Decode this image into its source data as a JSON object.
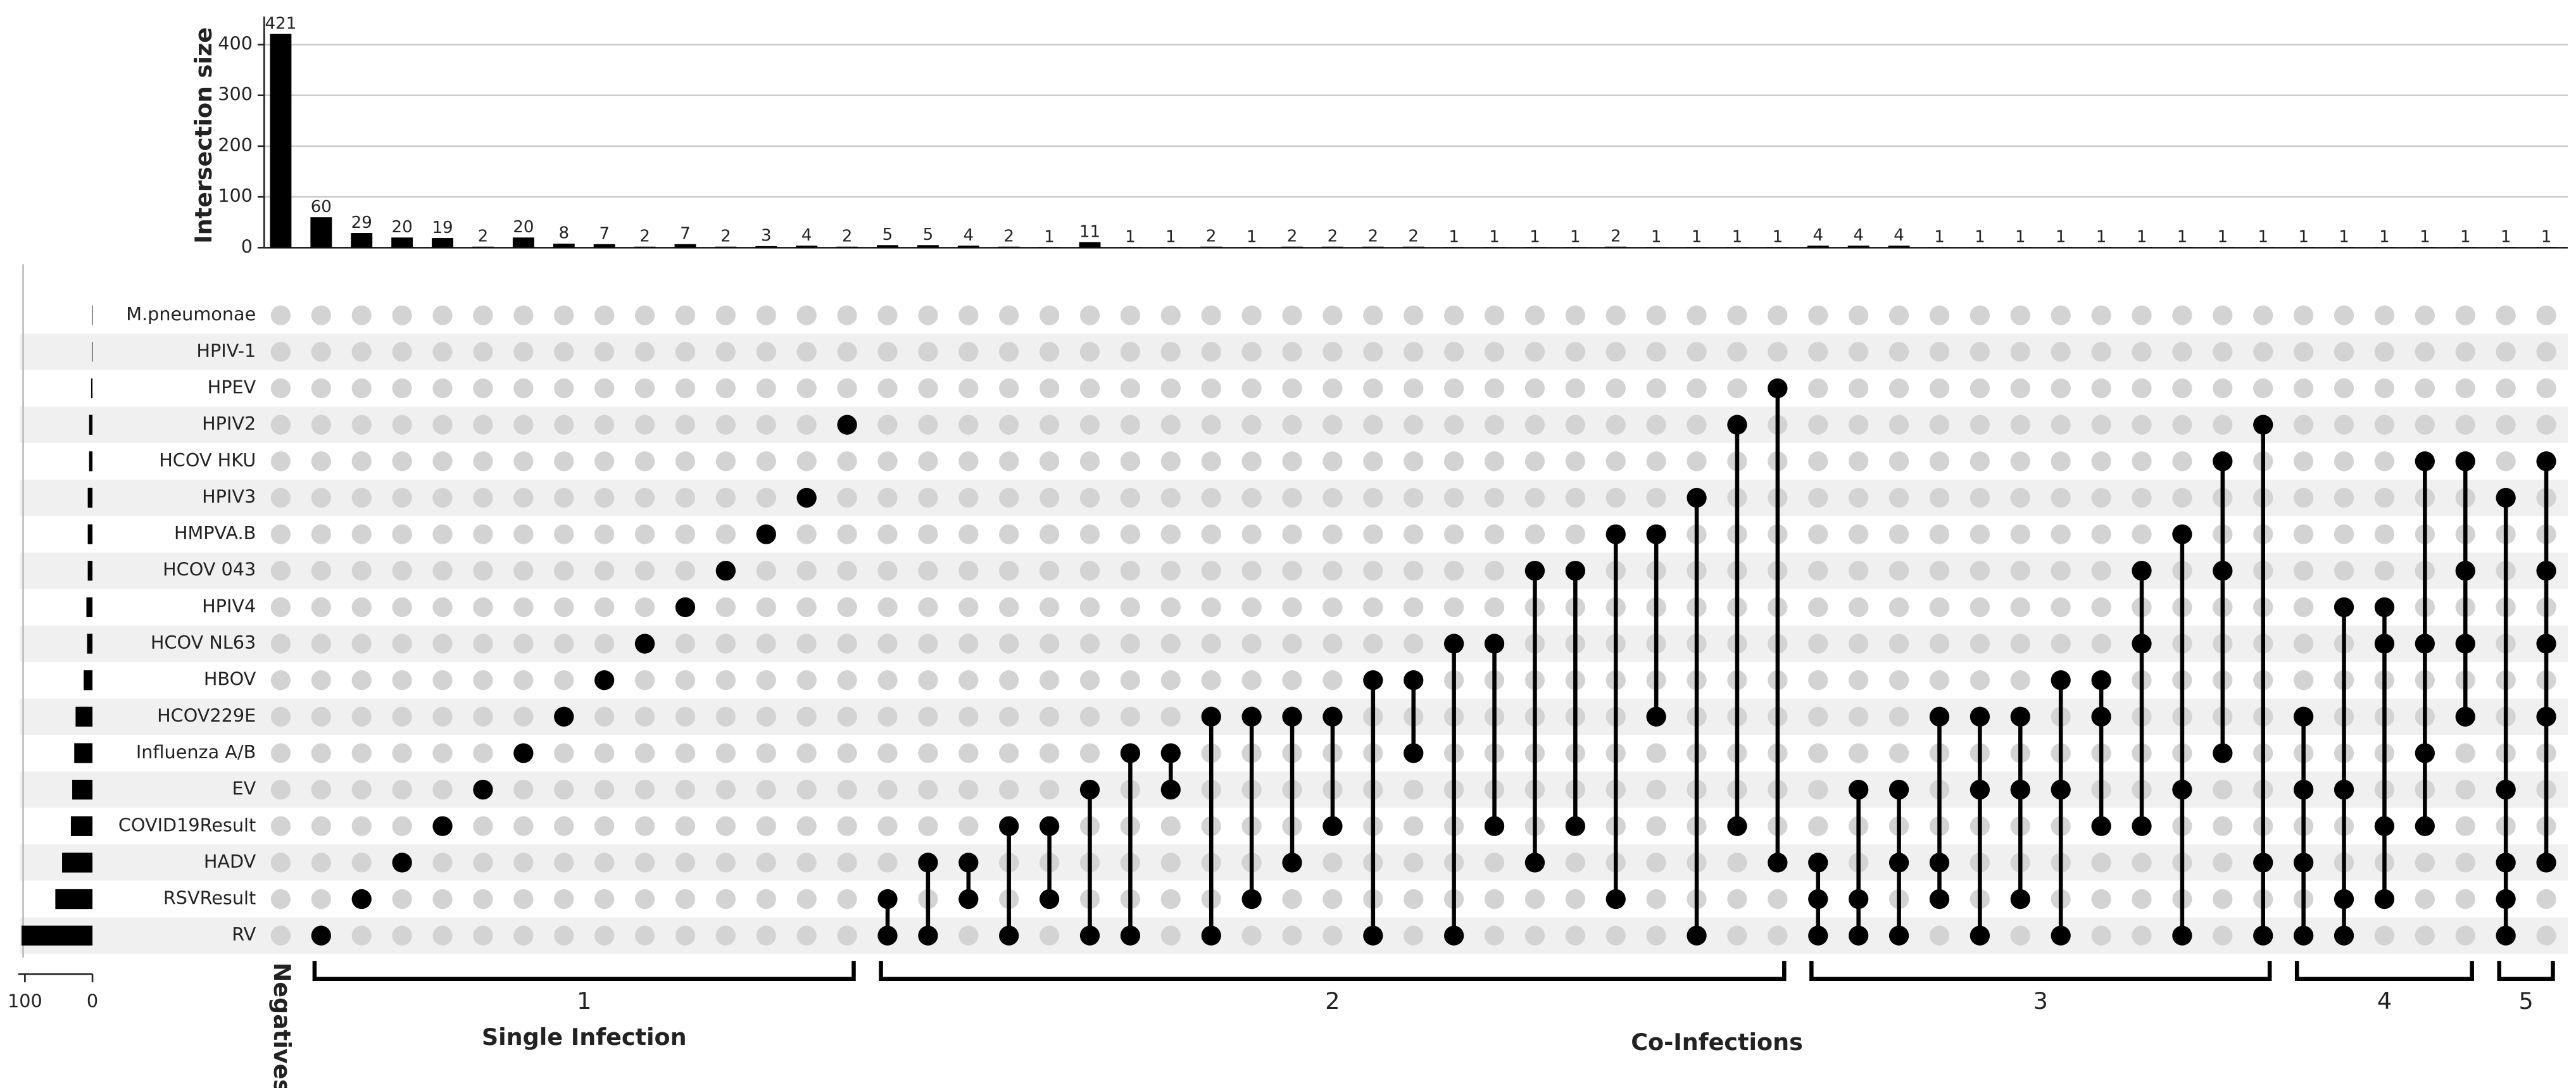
{
  "chart_data": {
    "type": "upset",
    "ylabel": "Intersection size",
    "ylim": [
      0,
      440
    ],
    "yticks": [
      0,
      100,
      200,
      300,
      400
    ],
    "grid": true,
    "dot_color": "#000000",
    "empty_dot_color": "#d3d3d3",
    "sets": [
      "M.pneumonae",
      "HPIV-1",
      "HPEV",
      "HPIV2",
      "HCOV HKU",
      "HPIV3",
      "HMPVA.B",
      "HCOV 043",
      "HPIV4",
      "HCOV NL63",
      "HBOV",
      "HCOV229E",
      "Influenza A/B",
      "EV",
      "COVID19Result",
      "HADV",
      "RSVResult",
      "RV"
    ],
    "set_sizes": [
      1,
      1,
      2,
      5,
      5,
      7,
      7,
      7,
      9,
      8,
      13,
      25,
      27,
      30,
      32,
      45,
      55,
      105
    ],
    "set_size_xlim": [
      0,
      110
    ],
    "set_size_xticks": [
      100,
      0
    ],
    "intersections": {
      "values": [
        421,
        60,
        29,
        20,
        19,
        2,
        20,
        8,
        7,
        2,
        7,
        2,
        3,
        4,
        2,
        5,
        5,
        4,
        2,
        1,
        11,
        1,
        1,
        2,
        1,
        2,
        2,
        2,
        2,
        1,
        1,
        1,
        1,
        2,
        1,
        1,
        1,
        1,
        4,
        4,
        4,
        1,
        1,
        1,
        1,
        1,
        1,
        1,
        1,
        1,
        1,
        1,
        1,
        1,
        1,
        1,
        1
      ],
      "members": [
        [],
        [
          17
        ],
        [
          16
        ],
        [
          15
        ],
        [
          14
        ],
        [
          13
        ],
        [
          12
        ],
        [
          11
        ],
        [
          10
        ],
        [
          9
        ],
        [
          8
        ],
        [
          7
        ],
        [
          6
        ],
        [
          5
        ],
        [
          3
        ],
        [
          16,
          17
        ],
        [
          15,
          17
        ],
        [
          15,
          16
        ],
        [
          14,
          17
        ],
        [
          14,
          16
        ],
        [
          13,
          17
        ],
        [
          12,
          17
        ],
        [
          12,
          13
        ],
        [
          11,
          17
        ],
        [
          11,
          16
        ],
        [
          11,
          15
        ],
        [
          11,
          14
        ],
        [
          10,
          17
        ],
        [
          10,
          12
        ],
        [
          9,
          17
        ],
        [
          9,
          14
        ],
        [
          7,
          15
        ],
        [
          7,
          14
        ],
        [
          6,
          16
        ],
        [
          6,
          11
        ],
        [
          5,
          17
        ],
        [
          3,
          14
        ],
        [
          2,
          15
        ],
        [
          15,
          16,
          17
        ],
        [
          13,
          16,
          17
        ],
        [
          13,
          15,
          17
        ],
        [
          11,
          15,
          16
        ],
        [
          11,
          13,
          17
        ],
        [
          11,
          13,
          16
        ],
        [
          10,
          13,
          17
        ],
        [
          10,
          11,
          14
        ],
        [
          7,
          9,
          14
        ],
        [
          6,
          13,
          17
        ],
        [
          4,
          7,
          12
        ],
        [
          3,
          15,
          17
        ],
        [
          11,
          13,
          15,
          17
        ],
        [
          8,
          13,
          16,
          17
        ],
        [
          8,
          9,
          14,
          16
        ],
        [
          4,
          9,
          12,
          14
        ],
        [
          4,
          7,
          9,
          11
        ],
        [
          5,
          13,
          15,
          16,
          17
        ],
        [
          4,
          7,
          9,
          11,
          15
        ]
      ]
    },
    "degree_groups": [
      1,
      2,
      3,
      4,
      5
    ],
    "negatives_label": "Negatives",
    "single_label": "Single Infection",
    "co_label": "Co-Infections"
  }
}
